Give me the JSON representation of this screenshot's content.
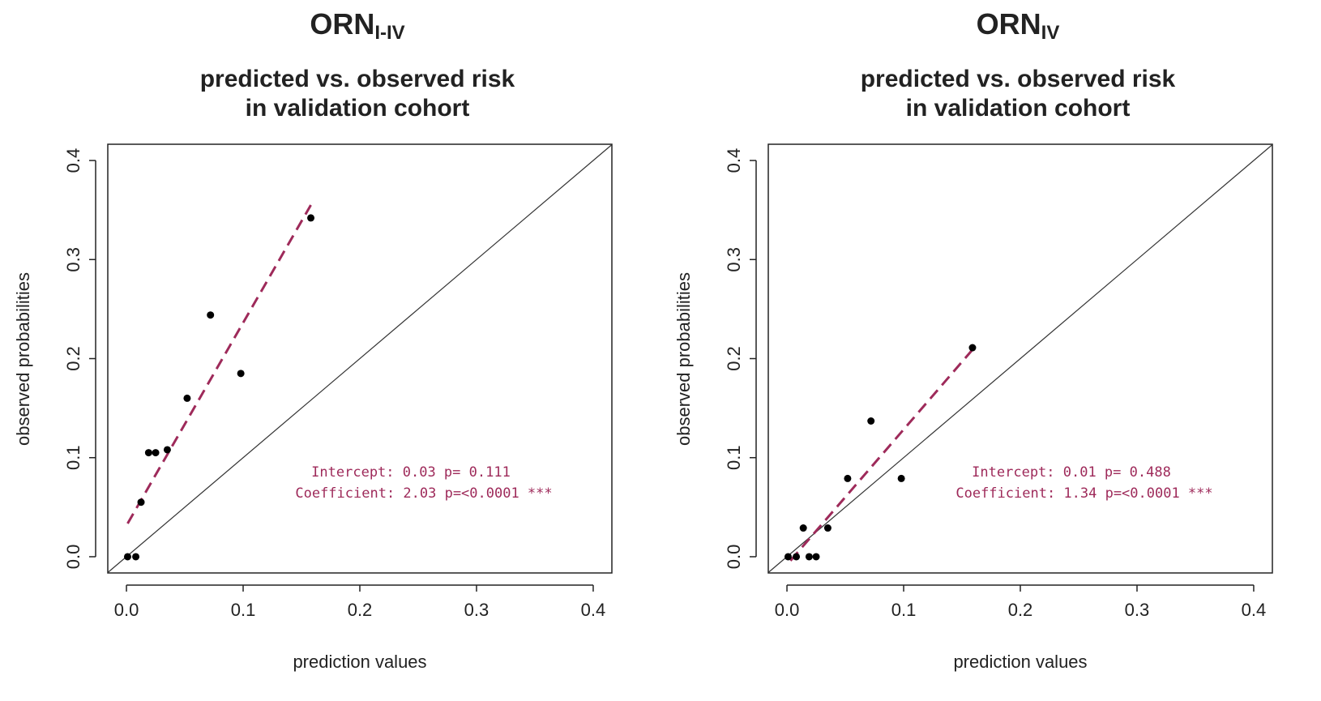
{
  "chart_data": [
    {
      "type": "scatter",
      "title": "ORN",
      "title_subscript": "I-IV",
      "subtitle": [
        "predicted vs. observed risk",
        "in validation cohort"
      ],
      "x_label": "prediction values",
      "y_label": "observed probabilities",
      "x": [
        0.001,
        0.008,
        0.0125,
        0.019,
        0.025,
        0.035,
        0.052,
        0.072,
        0.098,
        0.158
      ],
      "values": [
        0,
        0,
        0.055,
        0.105,
        0.105,
        0.108,
        0.16,
        0.244,
        0.185,
        0.342
      ],
      "color": "#000000",
      "fit": {
        "x": [
          0.001,
          0.158
        ],
        "values": [
          0.0335,
          0.355
        ],
        "color": "#9e2a5a"
      },
      "identity_line": true,
      "annotations": [
        "Intercept: 0.03 p= 0.111",
        "Coefficient: 2.03 p=<0.0001 ***"
      ],
      "annotation_color": "#9e2a5a",
      "xlim": [
        -0.016,
        0.416
      ],
      "ylim": [
        -0.0164,
        0.4164
      ],
      "xticks": [
        {
          "value": 0,
          "label": "0.0"
        },
        {
          "value": 0.1,
          "label": "0.1"
        },
        {
          "value": 0.2,
          "label": "0.2"
        },
        {
          "value": 0.3,
          "label": "0.3"
        },
        {
          "value": 0.4,
          "label": "0.4"
        }
      ],
      "yticks": [
        {
          "value": 0,
          "label": "0.0"
        },
        {
          "value": 0.1,
          "label": "0.1"
        },
        {
          "value": 0.2,
          "label": "0.2"
        },
        {
          "value": 0.3,
          "label": "0.3"
        },
        {
          "value": 0.4,
          "label": "0.4"
        }
      ]
    },
    {
      "type": "scatter",
      "title": "ORN",
      "title_subscript": "IV",
      "subtitle": [
        "predicted vs. observed risk",
        "in validation cohort"
      ],
      "x_label": "prediction values",
      "y_label": "observed probabilities",
      "x": [
        0.001,
        0.008,
        0.014,
        0.019,
        0.025,
        0.035,
        0.052,
        0.072,
        0.098,
        0.159
      ],
      "values": [
        0,
        0,
        0.029,
        0,
        0,
        0.029,
        0.079,
        0.137,
        0.079,
        0.211
      ],
      "color": "#000000",
      "fit": {
        "x": [
          0.003,
          0.159
        ],
        "values": [
          -0.004,
          0.209
        ],
        "color": "#9e2a5a"
      },
      "identity_line": true,
      "annotations": [
        "Intercept: 0.01 p= 0.488",
        "Coefficient: 1.34 p=<0.0001 ***"
      ],
      "annotation_color": "#9e2a5a",
      "xlim": [
        -0.016,
        0.416
      ],
      "ylim": [
        -0.0164,
        0.4164
      ],
      "xticks": [
        {
          "value": 0,
          "label": "0.0"
        },
        {
          "value": 0.1,
          "label": "0.1"
        },
        {
          "value": 0.2,
          "label": "0.2"
        },
        {
          "value": 0.3,
          "label": "0.3"
        },
        {
          "value": 0.4,
          "label": "0.4"
        }
      ],
      "yticks": [
        {
          "value": 0,
          "label": "0.0"
        },
        {
          "value": 0.1,
          "label": "0.1"
        },
        {
          "value": 0.2,
          "label": "0.2"
        },
        {
          "value": 0.3,
          "label": "0.3"
        },
        {
          "value": 0.4,
          "label": "0.4"
        }
      ]
    }
  ]
}
